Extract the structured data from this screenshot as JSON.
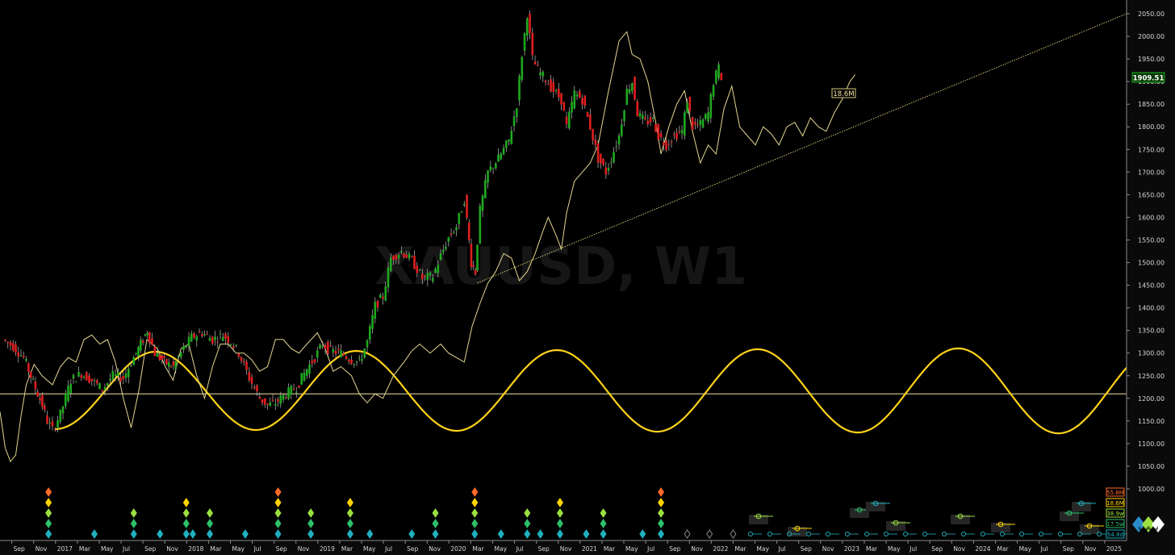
{
  "chart_data": {
    "type": "line",
    "watermark": "XAUUSD, W1",
    "price_axis": {
      "ticks": [
        1000,
        1050,
        1100,
        1150,
        1200,
        1250,
        1300,
        1350,
        1400,
        1450,
        1500,
        1550,
        1600,
        1650,
        1700,
        1750,
        1800,
        1850,
        1900,
        1950,
        2000,
        2050
      ],
      "labels": [
        "1000.00",
        "1050.00",
        "1100.00",
        "1150.00",
        "1200.00",
        "1250.00",
        "1300.00",
        "1350.00",
        "1400.00",
        "1450.00",
        "1500.00",
        "1550.00",
        "1600.00",
        "1650.00",
        "1700.00",
        "1750.00",
        "1800.00",
        "1850.00",
        "1900.00",
        "1950.00",
        "2000.00",
        "2050.00"
      ],
      "ylim": [
        995,
        2075
      ]
    },
    "time_axis": {
      "labels": [
        "Sep",
        "Nov",
        "2017",
        "Mar",
        "May",
        "Jul",
        "Sep",
        "Nov",
        "2018",
        "Mar",
        "May",
        "Jul",
        "Sep",
        "Nov",
        "2019",
        "Mar",
        "May",
        "Jul",
        "Sep",
        "Nov",
        "2020",
        "Mar",
        "May",
        "Jul",
        "Sep",
        "Nov",
        "2021",
        "Mar",
        "May",
        "Jul",
        "Sep",
        "Nov",
        "2022",
        "Mar",
        "May",
        "Jul",
        "Sep",
        "Nov",
        "2023",
        "Mar",
        "May",
        "Jul",
        "Sep",
        "Nov",
        "2024",
        "Mar",
        "May",
        "Jul",
        "Sep",
        "Nov",
        "2025"
      ],
      "xlim": [
        2016.58,
        2025.17
      ]
    },
    "last_price": "1909.51",
    "label_18_6m": "18.6M",
    "horizontal_level": 1210,
    "trendline": {
      "x": [
        2020.22,
        2026.0
      ],
      "y": [
        1455,
        2150
      ]
    },
    "price_series": {
      "name": "XAUUSD",
      "points": [
        [
          2016.62,
          1330
        ],
        [
          2016.7,
          1315
        ],
        [
          2016.78,
          1290
        ],
        [
          2016.85,
          1235
        ],
        [
          2016.92,
          1185
        ],
        [
          2016.96,
          1150
        ],
        [
          2017.0,
          1130
        ],
        [
          2017.06,
          1165
        ],
        [
          2017.14,
          1240
        ],
        [
          2017.22,
          1255
        ],
        [
          2017.3,
          1240
        ],
        [
          2017.38,
          1220
        ],
        [
          2017.46,
          1250
        ],
        [
          2017.54,
          1245
        ],
        [
          2017.6,
          1280
        ],
        [
          2017.67,
          1320
        ],
        [
          2017.72,
          1350
        ],
        [
          2017.78,
          1300
        ],
        [
          2017.85,
          1280
        ],
        [
          2017.92,
          1270
        ],
        [
          2018.0,
          1310
        ],
        [
          2018.06,
          1335
        ],
        [
          2018.14,
          1345
        ],
        [
          2018.22,
          1330
        ],
        [
          2018.3,
          1340
        ],
        [
          2018.36,
          1325
        ],
        [
          2018.42,
          1300
        ],
        [
          2018.5,
          1245
        ],
        [
          2018.58,
          1200
        ],
        [
          2018.64,
          1185
        ],
        [
          2018.7,
          1190
        ],
        [
          2018.78,
          1210
        ],
        [
          2018.86,
          1225
        ],
        [
          2018.94,
          1265
        ],
        [
          2019.0,
          1290
        ],
        [
          2019.06,
          1320
        ],
        [
          2019.12,
          1305
        ],
        [
          2019.2,
          1300
        ],
        [
          2019.28,
          1285
        ],
        [
          2019.34,
          1280
        ],
        [
          2019.4,
          1325
        ],
        [
          2019.46,
          1405
        ],
        [
          2019.52,
          1425
        ],
        [
          2019.58,
          1510
        ],
        [
          2019.66,
          1525
        ],
        [
          2019.74,
          1505
        ],
        [
          2019.82,
          1465
        ],
        [
          2019.9,
          1470
        ],
        [
          2019.96,
          1515
        ],
        [
          2020.02,
          1555
        ],
        [
          2020.08,
          1580
        ],
        [
          2020.14,
          1640
        ],
        [
          2020.19,
          1500
        ],
        [
          2020.22,
          1480
        ],
        [
          2020.26,
          1615
        ],
        [
          2020.32,
          1700
        ],
        [
          2020.4,
          1730
        ],
        [
          2020.48,
          1770
        ],
        [
          2020.54,
          1850
        ],
        [
          2020.58,
          1960
        ],
        [
          2020.62,
          2050
        ],
        [
          2020.66,
          1950
        ],
        [
          2020.7,
          1925
        ],
        [
          2020.76,
          1905
        ],
        [
          2020.82,
          1880
        ],
        [
          2020.88,
          1860
        ],
        [
          2020.92,
          1800
        ],
        [
          2020.98,
          1875
        ],
        [
          2021.04,
          1860
        ],
        [
          2021.1,
          1800
        ],
        [
          2021.16,
          1730
        ],
        [
          2021.22,
          1700
        ],
        [
          2021.26,
          1730
        ],
        [
          2021.32,
          1780
        ],
        [
          2021.38,
          1880
        ],
        [
          2021.42,
          1900
        ],
        [
          2021.46,
          1830
        ],
        [
          2021.52,
          1810
        ],
        [
          2021.58,
          1815
        ],
        [
          2021.62,
          1780
        ],
        [
          2021.68,
          1760
        ],
        [
          2021.74,
          1780
        ],
        [
          2021.8,
          1790
        ],
        [
          2021.84,
          1860
        ],
        [
          2021.88,
          1800
        ],
        [
          2021.94,
          1805
        ],
        [
          2022.0,
          1830
        ],
        [
          2022.04,
          1900
        ],
        [
          2022.08,
          1930
        ],
        [
          2022.1,
          1910
        ]
      ]
    },
    "projection_series": {
      "name": "composite projection",
      "points": [
        [
          2016.58,
          1170
        ],
        [
          2016.62,
          1090
        ],
        [
          2016.66,
          1060
        ],
        [
          2016.7,
          1075
        ],
        [
          2016.74,
          1160
        ],
        [
          2016.78,
          1230
        ],
        [
          2016.84,
          1275
        ],
        [
          2016.9,
          1250
        ],
        [
          2016.98,
          1230
        ],
        [
          2017.04,
          1270
        ],
        [
          2017.1,
          1290
        ],
        [
          2017.16,
          1280
        ],
        [
          2017.22,
          1330
        ],
        [
          2017.28,
          1340
        ],
        [
          2017.34,
          1320
        ],
        [
          2017.4,
          1330
        ],
        [
          2017.46,
          1280
        ],
        [
          2017.52,
          1200
        ],
        [
          2017.58,
          1135
        ],
        [
          2017.64,
          1220
        ],
        [
          2017.7,
          1330
        ],
        [
          2017.78,
          1310
        ],
        [
          2017.84,
          1270
        ],
        [
          2017.9,
          1240
        ],
        [
          2017.96,
          1310
        ],
        [
          2018.02,
          1320
        ],
        [
          2018.08,
          1250
        ],
        [
          2018.14,
          1200
        ],
        [
          2018.2,
          1270
        ],
        [
          2018.26,
          1320
        ],
        [
          2018.32,
          1320
        ],
        [
          2018.38,
          1300
        ],
        [
          2018.44,
          1300
        ],
        [
          2018.5,
          1285
        ],
        [
          2018.56,
          1260
        ],
        [
          2018.62,
          1270
        ],
        [
          2018.68,
          1330
        ],
        [
          2018.74,
          1330
        ],
        [
          2018.8,
          1310
        ],
        [
          2018.86,
          1300
        ],
        [
          2018.92,
          1320
        ],
        [
          2019.0,
          1345
        ],
        [
          2019.06,
          1310
        ],
        [
          2019.12,
          1260
        ],
        [
          2019.18,
          1270
        ],
        [
          2019.26,
          1250
        ],
        [
          2019.32,
          1210
        ],
        [
          2019.38,
          1190
        ],
        [
          2019.44,
          1210
        ],
        [
          2019.5,
          1200
        ],
        [
          2019.58,
          1250
        ],
        [
          2019.66,
          1280
        ],
        [
          2019.72,
          1305
        ],
        [
          2019.78,
          1320
        ],
        [
          2019.86,
          1300
        ],
        [
          2019.94,
          1320
        ],
        [
          2020.0,
          1300
        ],
        [
          2020.06,
          1290
        ],
        [
          2020.12,
          1280
        ],
        [
          2020.18,
          1360
        ],
        [
          2020.24,
          1410
        ],
        [
          2020.3,
          1455
        ],
        [
          2020.36,
          1480
        ],
        [
          2020.42,
          1520
        ],
        [
          2020.48,
          1510
        ],
        [
          2020.54,
          1460
        ],
        [
          2020.6,
          1480
        ],
        [
          2020.66,
          1520
        ],
        [
          2020.72,
          1570
        ],
        [
          2020.76,
          1600
        ],
        [
          2020.82,
          1560
        ],
        [
          2020.86,
          1530
        ],
        [
          2020.9,
          1610
        ],
        [
          2020.96,
          1680
        ],
        [
          2021.02,
          1700
        ],
        [
          2021.08,
          1720
        ],
        [
          2021.14,
          1760
        ],
        [
          2021.22,
          1880
        ],
        [
          2021.3,
          1990
        ],
        [
          2021.36,
          2010
        ],
        [
          2021.4,
          1960
        ],
        [
          2021.46,
          1950
        ],
        [
          2021.52,
          1900
        ],
        [
          2021.58,
          1810
        ],
        [
          2021.62,
          1740
        ],
        [
          2021.68,
          1800
        ],
        [
          2021.74,
          1850
        ],
        [
          2021.8,
          1880
        ],
        [
          2021.86,
          1790
        ],
        [
          2021.92,
          1720
        ],
        [
          2021.98,
          1760
        ],
        [
          2022.04,
          1740
        ],
        [
          2022.1,
          1840
        ],
        [
          2022.16,
          1890
        ],
        [
          2022.22,
          1800
        ],
        [
          2022.28,
          1780
        ],
        [
          2022.34,
          1760
        ],
        [
          2022.4,
          1800
        ],
        [
          2022.46,
          1785
        ],
        [
          2022.52,
          1760
        ],
        [
          2022.58,
          1800
        ],
        [
          2022.64,
          1810
        ],
        [
          2022.7,
          1780
        ],
        [
          2022.76,
          1820
        ],
        [
          2022.82,
          1800
        ],
        [
          2022.88,
          1790
        ],
        [
          2022.94,
          1830
        ],
        [
          2023.0,
          1860
        ],
        [
          2023.06,
          1900
        ],
        [
          2023.1,
          1915
        ]
      ]
    },
    "cycle_series": {
      "name": "18.6M cycle",
      "start": 2017.0,
      "end": 2025.17,
      "center": 1217,
      "period_years": 1.53,
      "amplitude_start": 85,
      "amplitude_end": 95
    }
  },
  "cycle_panel": {
    "legend": [
      {
        "label": "55.8M",
        "color": "#ff6a2a"
      },
      {
        "label": "18.6M",
        "color": "#ffd400"
      },
      {
        "label": "38.9w",
        "color": "#9be040"
      },
      {
        "label": "17.5w",
        "color": "#2ec06a"
      },
      {
        "label": "54.8d",
        "color": "#1fb0c0"
      }
    ],
    "diamonds": [
      {
        "x": 2016.95,
        "stack": 5
      },
      {
        "x": 2017.3,
        "stack": 1
      },
      {
        "x": 2017.6,
        "stack": 3
      },
      {
        "x": 2017.8,
        "stack": 1
      },
      {
        "x": 2018.0,
        "stack": 4
      },
      {
        "x": 2018.05,
        "stack": 1
      },
      {
        "x": 2018.18,
        "stack": 3
      },
      {
        "x": 2018.45,
        "stack": 1
      },
      {
        "x": 2018.7,
        "stack": 5
      },
      {
        "x": 2018.95,
        "stack": 3
      },
      {
        "x": 2019.25,
        "stack": 4
      },
      {
        "x": 2019.4,
        "stack": 1
      },
      {
        "x": 2019.72,
        "stack": 1
      },
      {
        "x": 2019.9,
        "stack": 3
      },
      {
        "x": 2020.2,
        "stack": 5
      },
      {
        "x": 2020.4,
        "stack": 1
      },
      {
        "x": 2020.6,
        "stack": 3
      },
      {
        "x": 2020.7,
        "stack": 1
      },
      {
        "x": 2020.85,
        "stack": 4
      },
      {
        "x": 2021.05,
        "stack": 1
      },
      {
        "x": 2021.18,
        "stack": 3
      },
      {
        "x": 2021.48,
        "stack": 1
      },
      {
        "x": 2021.62,
        "stack": 5
      }
    ],
    "projected_diamonds": [
      2021.82,
      2021.99,
      2022.17
    ]
  }
}
